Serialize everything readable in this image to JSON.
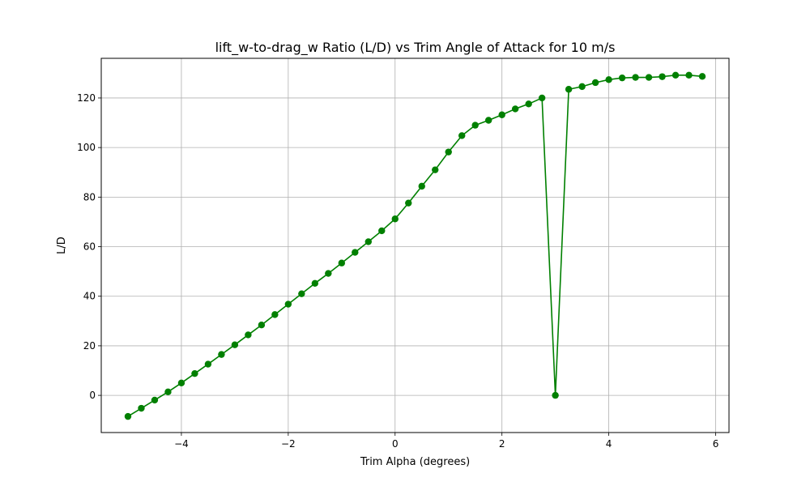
{
  "chart_data": {
    "type": "line",
    "title": "lift_w-to-drag_w Ratio (L/D) vs Trim Angle of Attack for 10 m/s",
    "xlabel": "Trim Alpha (degrees)",
    "ylabel": "L/D",
    "xlim": [
      -5.5,
      6.25
    ],
    "ylim": [
      -15,
      136
    ],
    "xticks": [
      -4,
      -2,
      0,
      2,
      4,
      6
    ],
    "xtick_labels": [
      "−4",
      "−2",
      "0",
      "2",
      "4",
      "6"
    ],
    "yticks": [
      0,
      20,
      40,
      60,
      80,
      100,
      120
    ],
    "ytick_labels": [
      "0",
      "20",
      "40",
      "60",
      "80",
      "100",
      "120"
    ],
    "grid": true,
    "line_color": "#008000",
    "marker": "circle",
    "series": [
      {
        "x": [
          -5.0,
          -4.75,
          -4.5,
          -4.25,
          -4.0,
          -3.75,
          -3.5,
          -3.25,
          -3.0,
          -2.75,
          -2.5,
          -2.25,
          -2.0,
          -1.75,
          -1.5,
          -1.25,
          -1.0,
          -0.75,
          -0.5,
          -0.25,
          0.0,
          0.25,
          0.5,
          0.75,
          1.0,
          1.25,
          1.5,
          1.75,
          2.0,
          2.25,
          2.5,
          2.75,
          3.0,
          3.25,
          3.5,
          3.75,
          4.0,
          4.25,
          4.5,
          4.75,
          5.0,
          5.25,
          5.5,
          5.75
        ],
        "y": [
          -8.5,
          -5.2,
          -1.9,
          1.4,
          5.0,
          8.8,
          12.6,
          16.5,
          20.4,
          24.4,
          28.4,
          32.6,
          36.8,
          41.0,
          45.2,
          49.2,
          53.4,
          57.7,
          62.0,
          66.4,
          71.2,
          77.6,
          84.4,
          91.0,
          98.2,
          104.8,
          109.0,
          111.0,
          113.2,
          115.6,
          117.6,
          120.0,
          0.0,
          123.5,
          124.6,
          126.2,
          127.4,
          128.1,
          128.3,
          128.3,
          128.6,
          129.2,
          129.2,
          128.7
        ]
      }
    ]
  }
}
